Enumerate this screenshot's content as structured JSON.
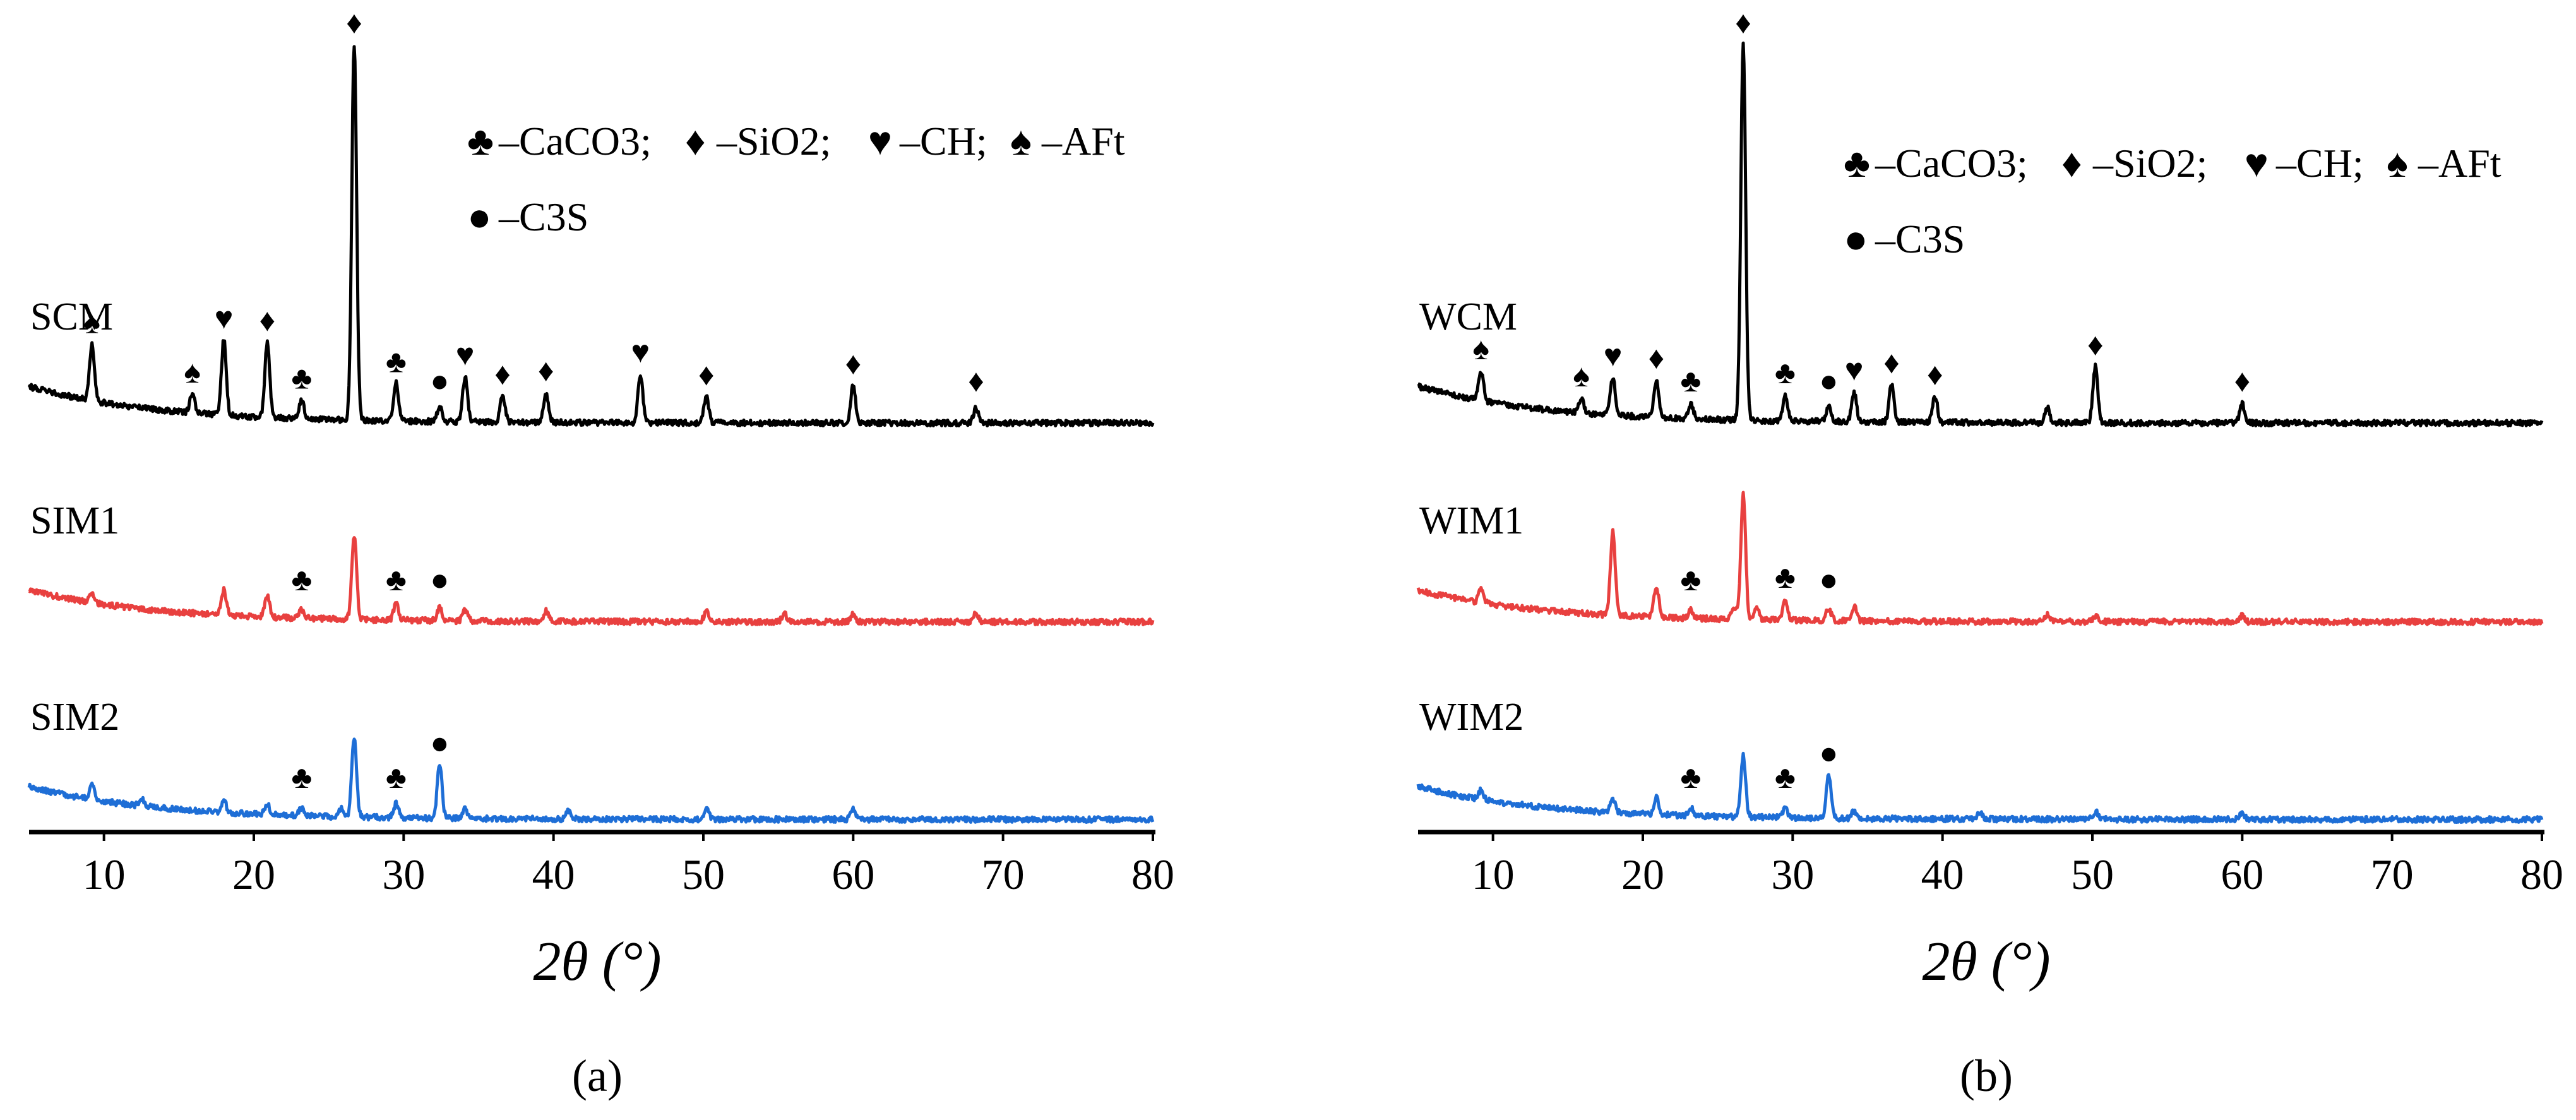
{
  "chart_data": [
    {
      "type": "line",
      "panel_label": "(a)",
      "xlabel": "2θ (°)",
      "xlim": [
        5,
        80
      ],
      "xticks": [
        10,
        20,
        30,
        40,
        50,
        60,
        70,
        80
      ],
      "legend": {
        "items": [
          {
            "symbol": "♣",
            "label": "–CaCO3;",
            "name": "CaCO3"
          },
          {
            "symbol": "♦",
            "label": "–SiO2;",
            "name": "SiO2"
          },
          {
            "symbol": "♥",
            "label": "–CH;",
            "name": "CH"
          },
          {
            "symbol": "♠",
            "label": "–AFt",
            "name": "AFt"
          },
          {
            "symbol": "●",
            "label": "–C3S",
            "name": "C3S"
          }
        ]
      },
      "series": [
        {
          "name": "SCM",
          "color": "#000000",
          "peaks": [
            [
              9.2,
              0.15
            ],
            [
              15.9,
              0.05
            ],
            [
              18.0,
              0.2
            ],
            [
              20.9,
              0.2
            ],
            [
              23.2,
              0.05
            ],
            [
              26.7,
              1.0
            ],
            [
              29.5,
              0.1
            ],
            [
              32.4,
              0.04
            ],
            [
              34.1,
              0.12
            ],
            [
              36.6,
              0.07
            ],
            [
              39.5,
              0.08
            ],
            [
              45.8,
              0.13
            ],
            [
              50.2,
              0.07
            ],
            [
              60.0,
              0.1
            ],
            [
              68.2,
              0.04
            ]
          ],
          "markers": [
            {
              "x": 9.2,
              "symbol": "♠"
            },
            {
              "x": 15.9,
              "symbol": "♠"
            },
            {
              "x": 18.0,
              "symbol": "♥"
            },
            {
              "x": 20.9,
              "symbol": "♦"
            },
            {
              "x": 23.2,
              "symbol": "♣"
            },
            {
              "x": 26.7,
              "symbol": "♦"
            },
            {
              "x": 29.5,
              "symbol": "♣"
            },
            {
              "x": 32.4,
              "symbol": "●"
            },
            {
              "x": 34.1,
              "symbol": "♥"
            },
            {
              "x": 36.6,
              "symbol": "♦"
            },
            {
              "x": 39.5,
              "symbol": "♦"
            },
            {
              "x": 45.8,
              "symbol": "♥"
            },
            {
              "x": 50.2,
              "symbol": "♦"
            },
            {
              "x": 60.0,
              "symbol": "♦"
            },
            {
              "x": 68.2,
              "symbol": "♦"
            }
          ]
        },
        {
          "name": "SIM1",
          "color": "#e8403f",
          "peaks": [
            [
              9.2,
              0.05
            ],
            [
              18.0,
              0.12
            ],
            [
              20.9,
              0.1
            ],
            [
              23.2,
              0.04
            ],
            [
              26.7,
              0.4
            ],
            [
              29.5,
              0.08
            ],
            [
              32.4,
              0.06
            ],
            [
              34.1,
              0.05
            ],
            [
              39.5,
              0.05
            ],
            [
              50.2,
              0.05
            ],
            [
              55.4,
              0.04
            ],
            [
              60.0,
              0.04
            ],
            [
              68.2,
              0.04
            ]
          ],
          "markers": [
            {
              "x": 23.2,
              "symbol": "♣"
            },
            {
              "x": 29.5,
              "symbol": "♣"
            },
            {
              "x": 32.4,
              "symbol": "●"
            }
          ]
        },
        {
          "name": "SIM2",
          "color": "#1e6ed6",
          "peaks": [
            [
              9.2,
              0.07
            ],
            [
              12.5,
              0.04
            ],
            [
              18.0,
              0.06
            ],
            [
              20.9,
              0.05
            ],
            [
              23.2,
              0.04
            ],
            [
              25.8,
              0.04
            ],
            [
              26.7,
              0.4
            ],
            [
              29.5,
              0.07
            ],
            [
              32.4,
              0.27
            ],
            [
              34.1,
              0.05
            ],
            [
              41.0,
              0.04
            ],
            [
              50.2,
              0.05
            ],
            [
              60.0,
              0.05
            ]
          ],
          "markers": [
            {
              "x": 23.2,
              "symbol": "♣"
            },
            {
              "x": 29.5,
              "symbol": "♣"
            },
            {
              "x": 32.4,
              "symbol": "●"
            }
          ]
        }
      ]
    },
    {
      "type": "line",
      "panel_label": "(b)",
      "xlabel": "2θ (°)",
      "xlim": [
        5,
        80
      ],
      "xticks": [
        10,
        20,
        30,
        40,
        50,
        60,
        70,
        80
      ],
      "legend": {
        "items": [
          {
            "symbol": "♣",
            "label": "–CaCO3;",
            "name": "CaCO3"
          },
          {
            "symbol": "♦",
            "label": "–SiO2;",
            "name": "SiO2"
          },
          {
            "symbol": "♥",
            "label": "–CH;",
            "name": "CH"
          },
          {
            "symbol": "♠",
            "label": "–AFt",
            "name": "AFt"
          },
          {
            "symbol": "●",
            "label": "–C3S",
            "name": "C3S"
          }
        ]
      },
      "series": [
        {
          "name": "WCM",
          "color": "#000000",
          "peaks": [
            [
              9.2,
              0.08
            ],
            [
              15.9,
              0.04
            ],
            [
              18.0,
              0.1
            ],
            [
              20.9,
              0.1
            ],
            [
              23.2,
              0.04
            ],
            [
              26.7,
              1.0
            ],
            [
              29.5,
              0.07
            ],
            [
              32.4,
              0.04
            ],
            [
              34.1,
              0.08
            ],
            [
              36.6,
              0.1
            ],
            [
              39.5,
              0.07
            ],
            [
              47.0,
              0.04
            ],
            [
              50.2,
              0.15
            ],
            [
              60.0,
              0.05
            ]
          ],
          "markers": [
            {
              "x": 9.2,
              "symbol": "♠"
            },
            {
              "x": 15.9,
              "symbol": "♠"
            },
            {
              "x": 18.0,
              "symbol": "♥"
            },
            {
              "x": 20.9,
              "symbol": "♦"
            },
            {
              "x": 23.2,
              "symbol": "♣"
            },
            {
              "x": 26.7,
              "symbol": "♦"
            },
            {
              "x": 29.5,
              "symbol": "♣"
            },
            {
              "x": 32.4,
              "symbol": "●"
            },
            {
              "x": 34.1,
              "symbol": "♥"
            },
            {
              "x": 36.6,
              "symbol": "♦"
            },
            {
              "x": 39.5,
              "symbol": "♦"
            },
            {
              "x": 50.2,
              "symbol": "♦"
            },
            {
              "x": 60.0,
              "symbol": "♦"
            }
          ]
        },
        {
          "name": "WIM1",
          "color": "#e8403f",
          "peaks": [
            [
              9.2,
              0.07
            ],
            [
              18.0,
              0.4
            ],
            [
              20.9,
              0.15
            ],
            [
              23.2,
              0.04
            ],
            [
              26.1,
              0.06
            ],
            [
              26.7,
              0.6
            ],
            [
              27.6,
              0.06
            ],
            [
              29.5,
              0.1
            ],
            [
              32.4,
              0.06
            ],
            [
              34.1,
              0.07
            ],
            [
              47.0,
              0.03
            ],
            [
              50.2,
              0.03
            ],
            [
              60.0,
              0.03
            ]
          ],
          "markers": [
            {
              "x": 23.2,
              "symbol": "♣"
            },
            {
              "x": 29.5,
              "symbol": "♣"
            },
            {
              "x": 32.4,
              "symbol": "●"
            }
          ]
        },
        {
          "name": "WIM2",
          "color": "#1e6ed6",
          "peaks": [
            [
              9.2,
              0.05
            ],
            [
              18.0,
              0.07
            ],
            [
              20.9,
              0.09
            ],
            [
              23.2,
              0.04
            ],
            [
              26.7,
              0.31
            ],
            [
              29.5,
              0.05
            ],
            [
              32.4,
              0.22
            ],
            [
              34.1,
              0.04
            ],
            [
              42.5,
              0.03
            ],
            [
              50.2,
              0.04
            ],
            [
              60.0,
              0.03
            ]
          ],
          "markers": [
            {
              "x": 23.2,
              "symbol": "♣"
            },
            {
              "x": 29.5,
              "symbol": "♣"
            },
            {
              "x": 32.4,
              "symbol": "●"
            }
          ]
        }
      ]
    }
  ]
}
